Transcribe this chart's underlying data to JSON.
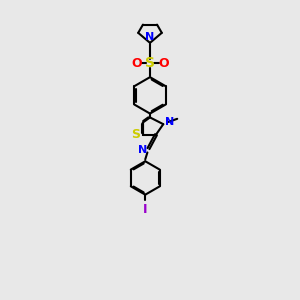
{
  "bg_color": "#e8e8e8",
  "bond_color": "#000000",
  "N_color": "#0000ff",
  "S_color": "#cccc00",
  "O_color": "#ff0000",
  "I_color": "#9900cc",
  "line_width": 1.5,
  "figsize": [
    3.0,
    3.0
  ],
  "dpi": 100,
  "xlim": [
    2.5,
    7.5
  ],
  "ylim": [
    0.5,
    14.5
  ]
}
